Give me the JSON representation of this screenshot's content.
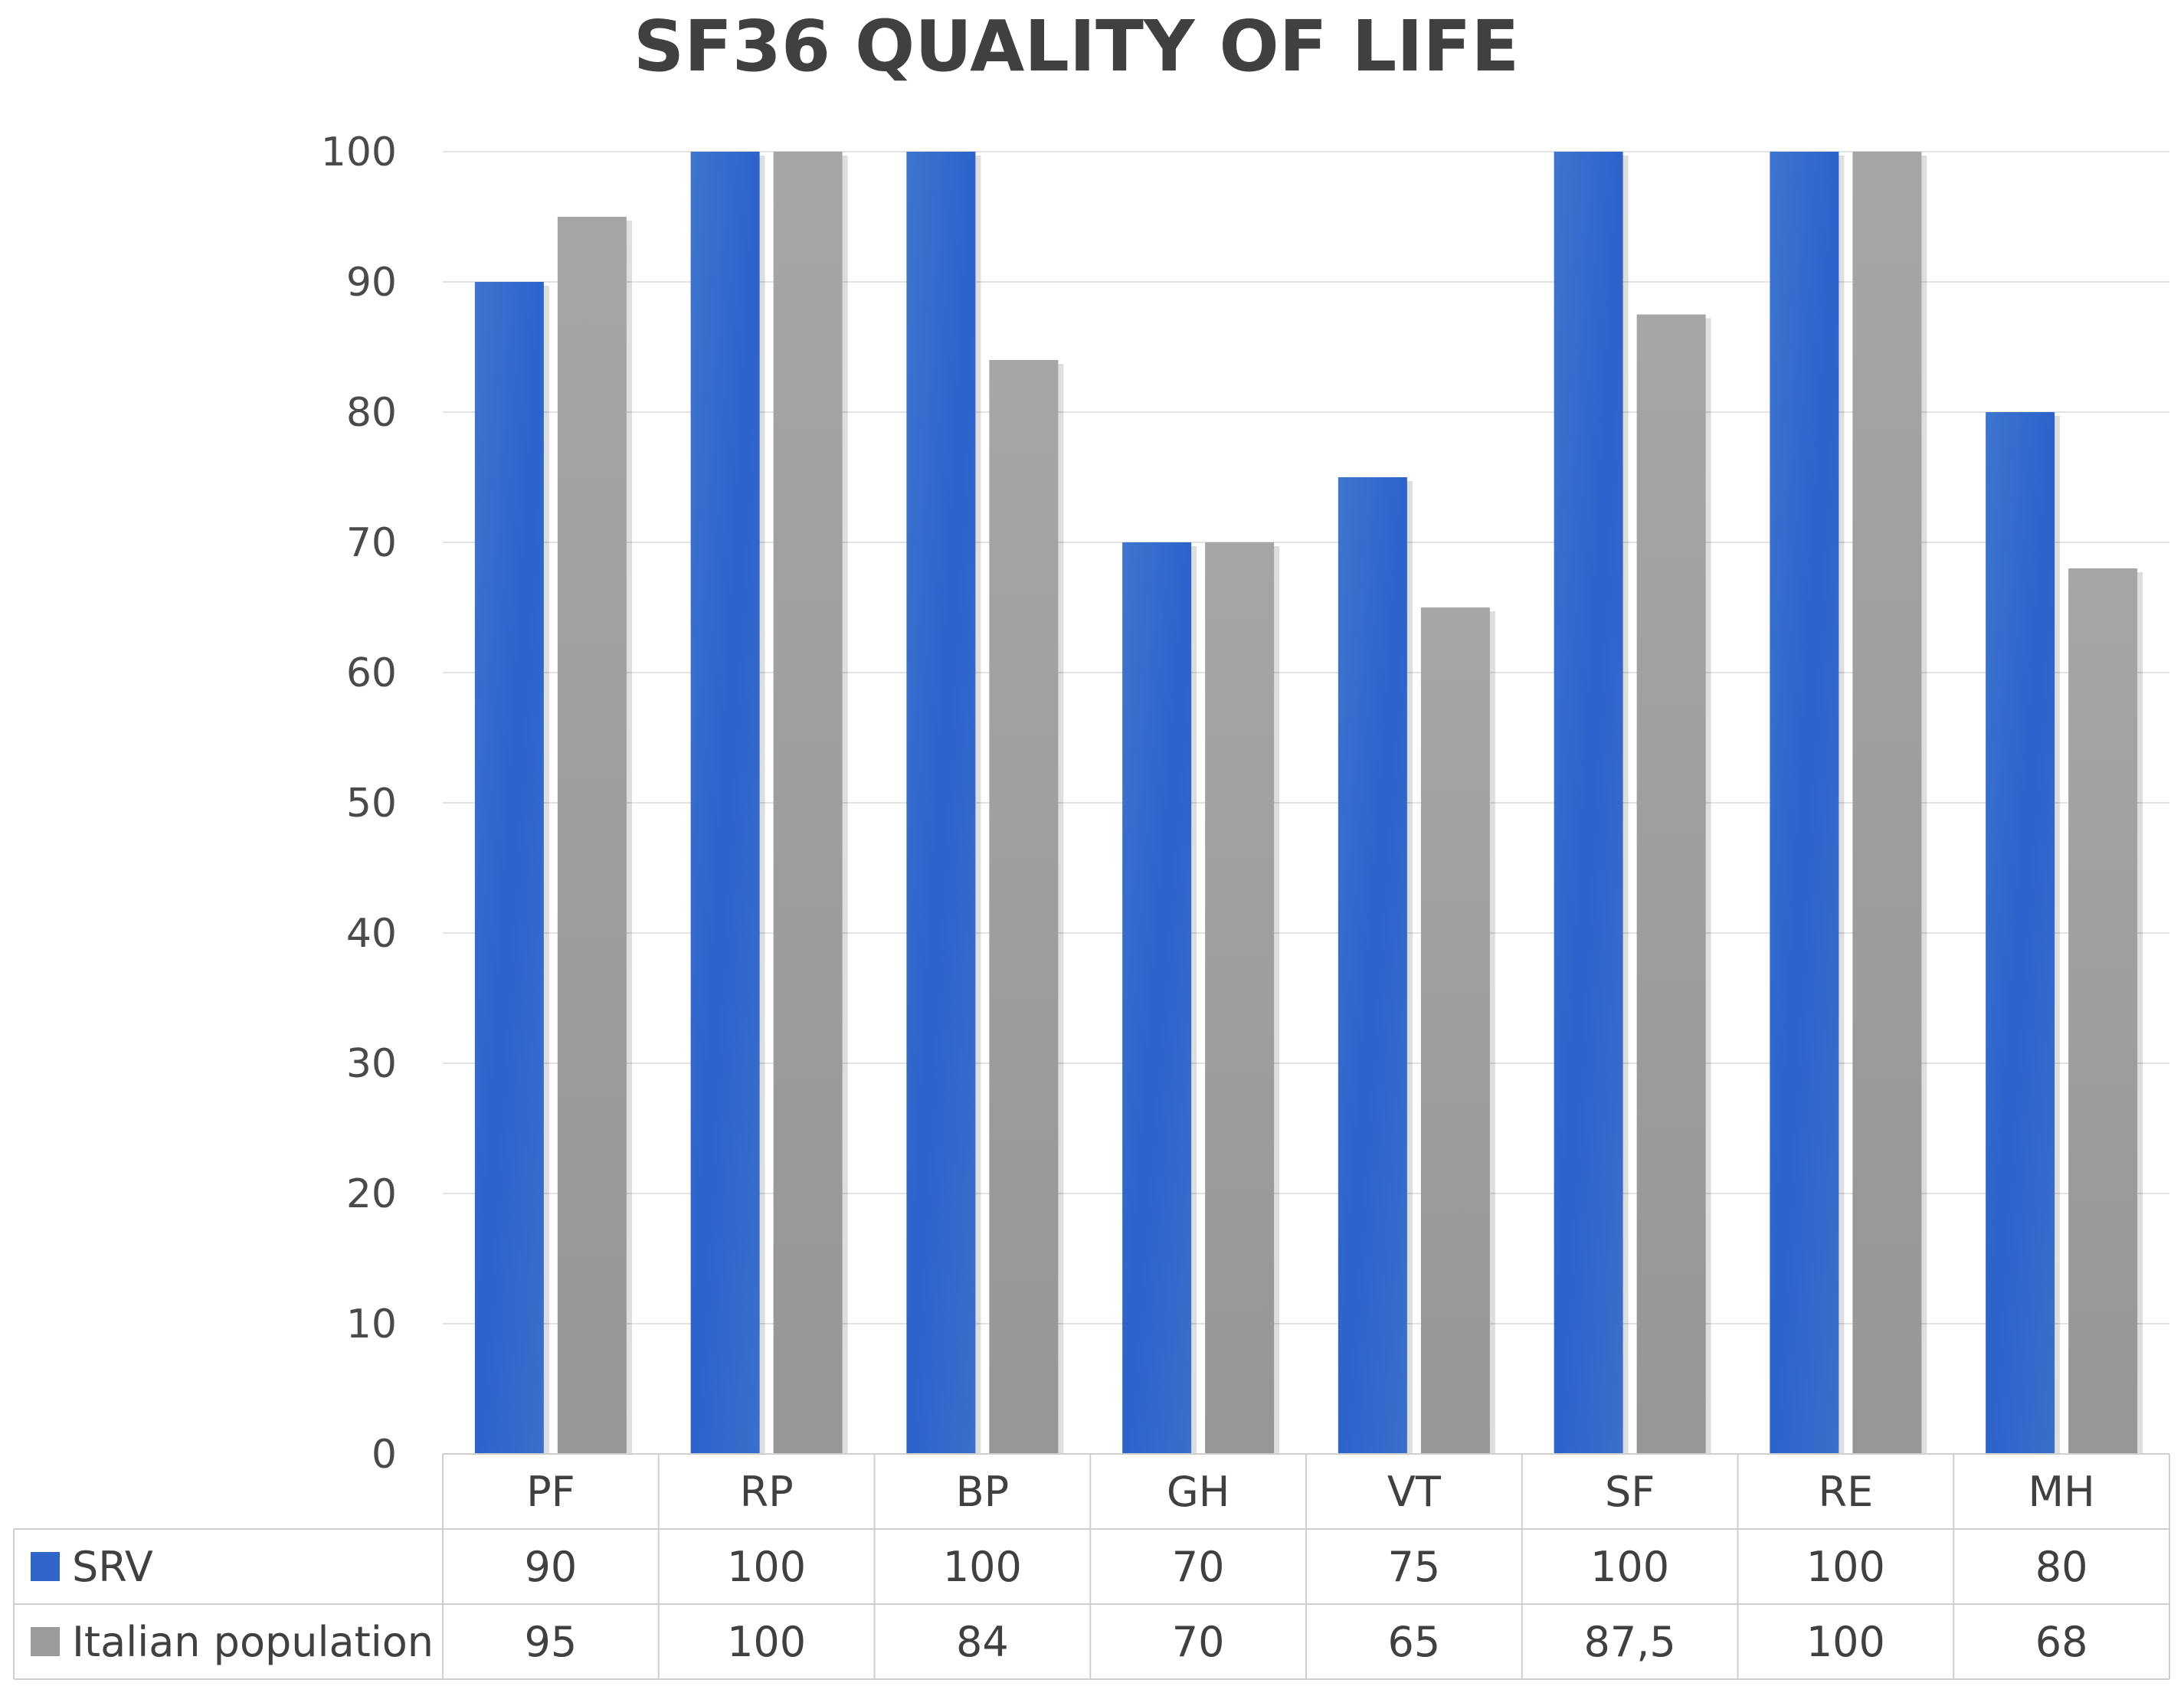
{
  "chart_data": {
    "type": "bar",
    "title": "SF36 QUALITY OF LIFE",
    "categories": [
      "PF",
      "RP",
      "BP",
      "GH",
      "VT",
      "SF",
      "RE",
      "MH"
    ],
    "series": [
      {
        "name": "SRV",
        "color": "#2f66c8",
        "values": [
          90,
          100,
          100,
          70,
          75,
          100,
          100,
          80
        ],
        "labels": [
          "90",
          "100",
          "100",
          "70",
          "75",
          "100",
          "100",
          "80"
        ]
      },
      {
        "name": "Italian population",
        "color": "#9b9b9b",
        "values": [
          95,
          100,
          84,
          70,
          65,
          87.5,
          100,
          68
        ],
        "labels": [
          "95",
          "100",
          "84",
          "70",
          "65",
          "87,5",
          "100",
          "68"
        ]
      }
    ],
    "ylim": [
      0,
      100
    ],
    "yticks": [
      0,
      10,
      20,
      30,
      40,
      50,
      60,
      70,
      80,
      90,
      100
    ],
    "grid": true,
    "legend": "data-table"
  }
}
